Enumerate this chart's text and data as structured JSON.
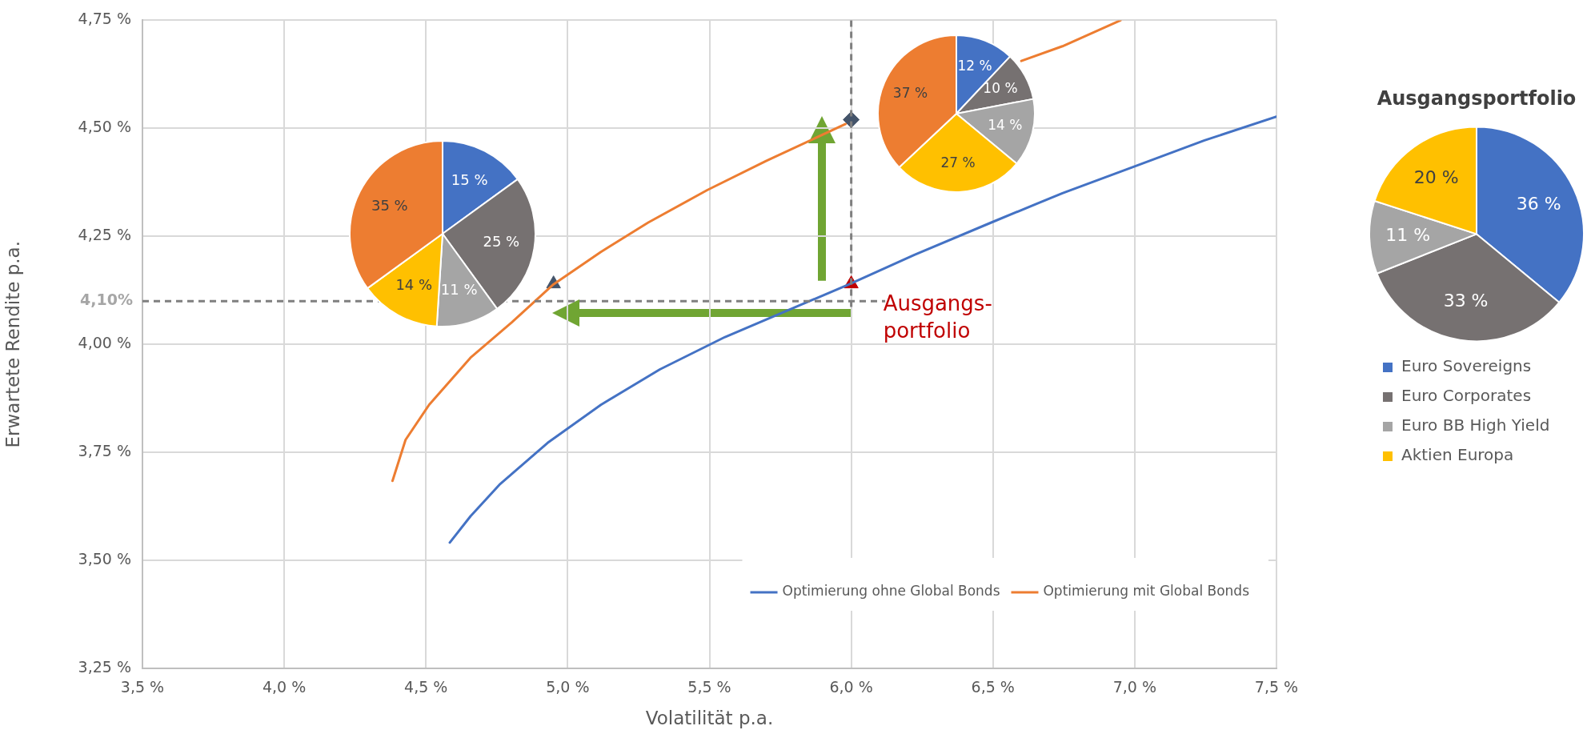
{
  "chart_data": [
    {
      "type": "line",
      "xlabel": "Volatilität p.a.",
      "ylabel": "Erwartete Rendite p.a.",
      "xlim": [
        3.5,
        7.5
      ],
      "xticks": [
        {
          "value": 3.5,
          "label": "3,5 %"
        },
        {
          "value": 4.0,
          "label": "4,0 %"
        },
        {
          "value": 4.5,
          "label": "4,5 %"
        },
        {
          "value": 5.0,
          "label": "5,0 %"
        },
        {
          "value": 5.5,
          "label": "5,5 %"
        },
        {
          "value": 6.0,
          "label": "6,0 %"
        },
        {
          "value": 6.5,
          "label": "6,5 %"
        },
        {
          "value": 7.0,
          "label": "7,0 %"
        },
        {
          "value": 7.5,
          "label": "7,5 %"
        }
      ],
      "ylim": [
        3.25,
        4.75
      ],
      "yticks": [
        {
          "value": 3.25,
          "label": "3,25 %"
        },
        {
          "value": 3.5,
          "label": "3,50 %"
        },
        {
          "value": 3.75,
          "label": "3,75 %"
        },
        {
          "value": 4.0,
          "label": "4,00 %"
        },
        {
          "value": 4.25,
          "label": "4,25 %"
        },
        {
          "value": 4.5,
          "label": "4,50 %"
        },
        {
          "value": 4.75,
          "label": "4,75 %"
        }
      ],
      "grid": true,
      "legend": "bottom right",
      "marker": "none",
      "line_style": "solid",
      "series": [
        {
          "name": "Optimierung ohne Global Bonds",
          "color": "#4472c4",
          "x": [
            4.584,
            4.657,
            4.762,
            4.929,
            5.117,
            5.325,
            5.555,
            5.993,
            6.223,
            6.494,
            6.745,
            6.996,
            7.246,
            7.5
          ],
          "values": [
            3.541,
            3.602,
            3.677,
            3.772,
            3.86,
            3.942,
            4.017,
            4.139,
            4.207,
            4.282,
            4.35,
            4.411,
            4.472,
            4.527
          ]
        },
        {
          "name": "Optimierung mit Global Bonds",
          "color": "#ed7d31",
          "x": [
            4.382,
            4.428,
            4.511,
            4.657,
            4.803,
            4.95,
            5.117,
            5.284,
            5.492,
            5.701,
            5.98,
            6.119,
            6.327,
            6.6,
            6.745,
            6.95
          ],
          "values": [
            3.684,
            3.779,
            3.86,
            3.969,
            4.051,
            4.139,
            4.214,
            4.282,
            4.357,
            4.425,
            4.51,
            null,
            null,
            4.656,
            4.69,
            4.75
          ]
        },
        {
          "type": "scatter",
          "marker": "triangle",
          "color": "#44546a",
          "x": [
            4.95
          ],
          "values": [
            4.14
          ]
        },
        {
          "type": "scatter",
          "marker": "triangle",
          "color": "#c00000",
          "x": [
            6.0
          ],
          "values": [
            4.14
          ]
        },
        {
          "type": "scatter",
          "marker": "diamond",
          "color": "#44546a",
          "x": [
            6.0
          ],
          "values": [
            4.52
          ]
        }
      ],
      "ref_lines": [
        {
          "axis": "x",
          "value": 6.0,
          "color": "#7f7f7f",
          "line_style": "dashed"
        },
        {
          "axis": "y",
          "value": 4.1,
          "label": "4,10%",
          "color": "#7f7f7f",
          "line_style": "dashed"
        }
      ],
      "annotations": [
        {
          "text": "Ausgangs-\nportfolio",
          "x": 6.0,
          "y": 4.14
        }
      ]
    },
    {
      "type": "pie",
      "categories": [
        null,
        null,
        null,
        null,
        null
      ],
      "values": [
        15,
        25,
        11,
        14,
        35
      ],
      "value_labels": [
        "15 %",
        "25 %",
        "11 %",
        "14 %",
        "35 %"
      ],
      "colors": [
        "#4472c4",
        "#767171",
        "#a5a5a5",
        "#ffc000",
        "#ed7d31"
      ]
    },
    {
      "type": "pie",
      "categories": [
        null,
        null,
        null,
        null,
        null
      ],
      "values": [
        12,
        10,
        14,
        27,
        37
      ],
      "value_labels": [
        "12 %",
        "10 %",
        "14 %",
        "27 %",
        "37 %"
      ],
      "colors": [
        "#4472c4",
        "#767171",
        "#a5a5a5",
        "#ffc000",
        "#ed7d31"
      ]
    },
    {
      "type": "pie",
      "title": "Ausgangsportfolio",
      "categories": [
        "Euro Sovereigns",
        "Euro Corporates",
        "Euro BB High Yield",
        "Aktien Europa"
      ],
      "values": [
        36,
        33,
        11,
        20
      ],
      "value_labels": [
        "36 %",
        "33 %",
        "11 %",
        "20 %"
      ],
      "colors": [
        "#4472c4",
        "#767171",
        "#a5a5a5",
        "#ffc000"
      ],
      "legend": "bottom"
    }
  ]
}
